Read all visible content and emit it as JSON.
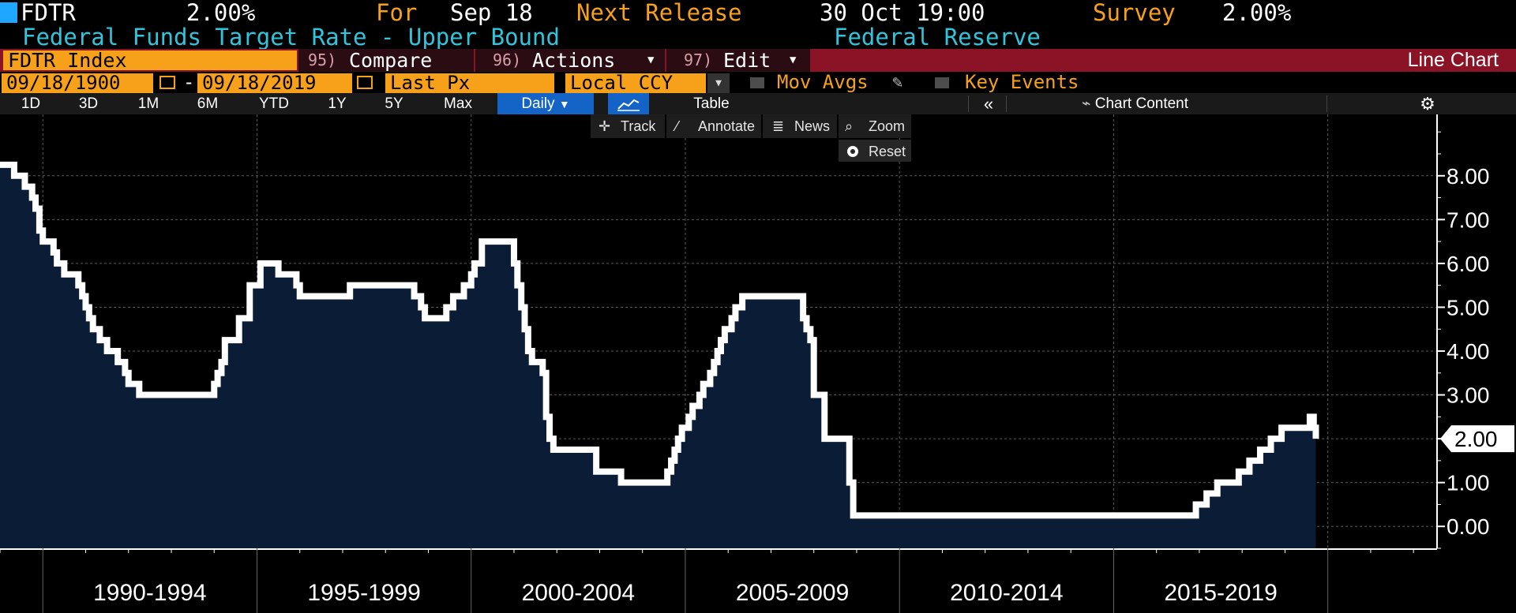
{
  "header": {
    "ticker": "FDTR",
    "last_value": "2.00%",
    "for_label": "For",
    "for_date": "Sep 18",
    "next_release_label": "Next Release",
    "next_release_value": "30 Oct 19:00",
    "survey_label": "Survey",
    "survey_value": "2.00%",
    "description": "Federal Funds Target Rate - Upper Bound",
    "source": "Federal Reserve"
  },
  "toolbar": {
    "security": "FDTR Index",
    "compare_num": "95)",
    "compare_label": "Compare",
    "actions_num": "96)",
    "actions_label": "Actions",
    "edit_num": "97)",
    "edit_label": "Edit",
    "chart_type": "Line Chart"
  },
  "controls": {
    "start_date": "09/18/1900",
    "dash": "-",
    "end_date": "09/18/2019",
    "field": "Last Px",
    "currency": "Local CCY",
    "mov_avgs": "Mov Avgs",
    "key_events": "Key Events"
  },
  "timeframes": [
    "1D",
    "3D",
    "1M",
    "6M",
    "YTD",
    "1Y",
    "5Y",
    "Max"
  ],
  "frequency": "Daily",
  "table_label": "Table",
  "chart_content_label": "Chart Content",
  "chart_tools": {
    "track": "Track",
    "annotate": "Annotate",
    "news": "News",
    "zoom": "Zoom",
    "reset": "Reset"
  },
  "colors": {
    "accent_amber": "#f7a11a",
    "header_cyan": "#2fc6dd",
    "toolbar_red": "#8a1426",
    "area_fill": "#0b1c36",
    "line": "#ffffff"
  },
  "chart_data": {
    "type": "area",
    "series": [
      {
        "x": [
          1989.0,
          1989.2,
          1989.33,
          1989.45,
          1989.58,
          1989.75,
          1989.83,
          1989.92,
          1990.0,
          1990.25,
          1990.33,
          1990.5,
          1990.75,
          1990.83,
          1990.92,
          1991.0,
          1991.08,
          1991.17,
          1991.33,
          1991.5,
          1991.67,
          1991.75,
          1991.83,
          1991.92,
          1992.0,
          1992.25,
          1992.42,
          1992.58,
          1992.67,
          1994.0,
          1994.08,
          1994.17,
          1994.25,
          1994.33,
          1994.58,
          1994.83,
          1995.08,
          1995.5,
          1995.92,
          1996.0,
          1997.17,
          1998.67,
          1998.83,
          1998.92,
          1999.42,
          1999.58,
          1999.83,
          2000.0,
          2000.08,
          2000.25,
          2000.33,
          2000.92,
          2001.0,
          2001.08,
          2001.17,
          2001.25,
          2001.33,
          2001.42,
          2001.5,
          2001.67,
          2001.75,
          2001.83,
          2001.92,
          2002.83,
          2002.92,
          2003.42,
          2003.5,
          2004.5,
          2004.58,
          2004.67,
          2004.75,
          2004.83,
          2004.92,
          2005.08,
          2005.17,
          2005.33,
          2005.42,
          2005.58,
          2005.67,
          2005.75,
          2005.83,
          2005.92,
          2006.08,
          2006.17,
          2006.33,
          2006.42,
          2006.5,
          2007.67,
          2007.75,
          2007.83,
          2007.92,
          2008.0,
          2008.08,
          2008.25,
          2008.75,
          2008.83,
          2008.92,
          2015.92,
          2016.92,
          2017.17,
          2017.42,
          2017.92,
          2018.17,
          2018.42,
          2018.67,
          2018.92,
          2019.58,
          2019.67,
          2019.72
        ],
        "y": [
          8.25,
          8.25,
          8.0,
          8.0,
          7.75,
          7.5,
          7.25,
          6.75,
          6.5,
          6.25,
          6.0,
          5.75,
          5.75,
          5.5,
          5.25,
          5.0,
          4.75,
          4.5,
          4.25,
          4.0,
          4.0,
          3.75,
          3.75,
          3.5,
          3.25,
          3.0,
          3.0,
          3.0,
          3.0,
          3.25,
          3.5,
          3.75,
          4.25,
          4.25,
          4.75,
          5.5,
          6.0,
          5.75,
          5.5,
          5.25,
          5.5,
          5.25,
          5.0,
          4.75,
          5.0,
          5.25,
          5.5,
          5.75,
          6.0,
          6.5,
          6.5,
          6.5,
          6.0,
          5.5,
          5.0,
          4.5,
          4.0,
          3.75,
          3.75,
          3.5,
          2.5,
          2.0,
          1.75,
          1.75,
          1.25,
          1.25,
          1.0,
          1.0,
          1.25,
          1.5,
          1.75,
          2.0,
          2.25,
          2.5,
          2.75,
          3.0,
          3.25,
          3.5,
          3.75,
          4.0,
          4.25,
          4.5,
          4.75,
          5.0,
          5.25,
          5.25,
          5.25,
          5.25,
          4.75,
          4.5,
          4.25,
          3.0,
          3.0,
          2.0,
          2.0,
          1.0,
          0.25,
          0.25,
          0.5,
          0.75,
          1.0,
          1.25,
          1.5,
          1.75,
          2.0,
          2.25,
          2.5,
          2.25,
          2.0
        ]
      }
    ],
    "x_categories": [
      "1990-1994",
      "1995-1999",
      "2000-2004",
      "2005-2009",
      "2010-2014",
      "2015-2019"
    ],
    "y_ticks": [
      "0.00",
      "1.00",
      "2.00",
      "3.00",
      "4.00",
      "5.00",
      "6.00",
      "7.00",
      "8.00"
    ],
    "ylim": [
      -0.5,
      9.4
    ],
    "xlim": [
      1989.0,
      2022.55
    ],
    "last_label": "2.00",
    "grid": true,
    "legend": "none"
  }
}
